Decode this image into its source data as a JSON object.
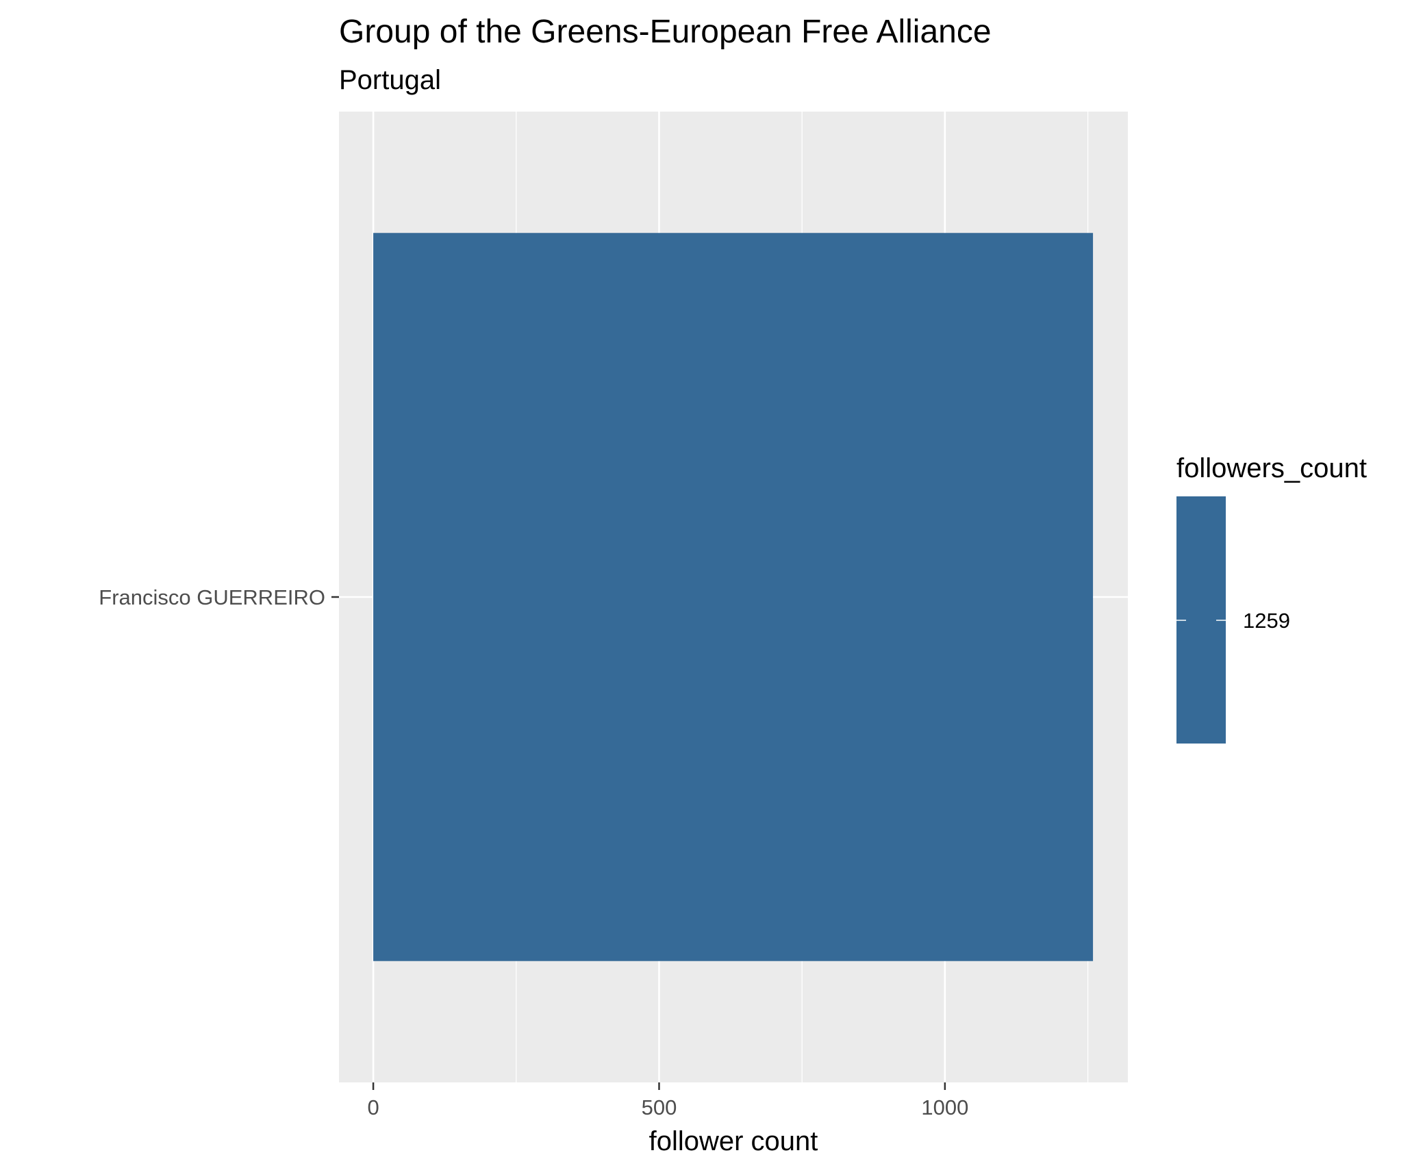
{
  "chart_data": {
    "type": "bar",
    "orientation": "horizontal",
    "title": "Group of the Greens-European Free Alliance",
    "subtitle": "Portugal",
    "xlabel": "follower count",
    "ylabel": "",
    "categories": [
      "Francisco GUERREIRO"
    ],
    "values": [
      1259
    ],
    "xlim": [
      -60,
      1320
    ],
    "x_ticks": [
      0,
      500,
      1000
    ],
    "x_tick_labels": [
      "0",
      "500",
      "1000"
    ],
    "grid": true,
    "legend": {
      "title": "followers_count",
      "labels": [
        "1259"
      ],
      "placement": "right"
    },
    "colors": {
      "bar": "#366a97",
      "panel": "#ebebeb",
      "grid": "#ffffff"
    }
  }
}
